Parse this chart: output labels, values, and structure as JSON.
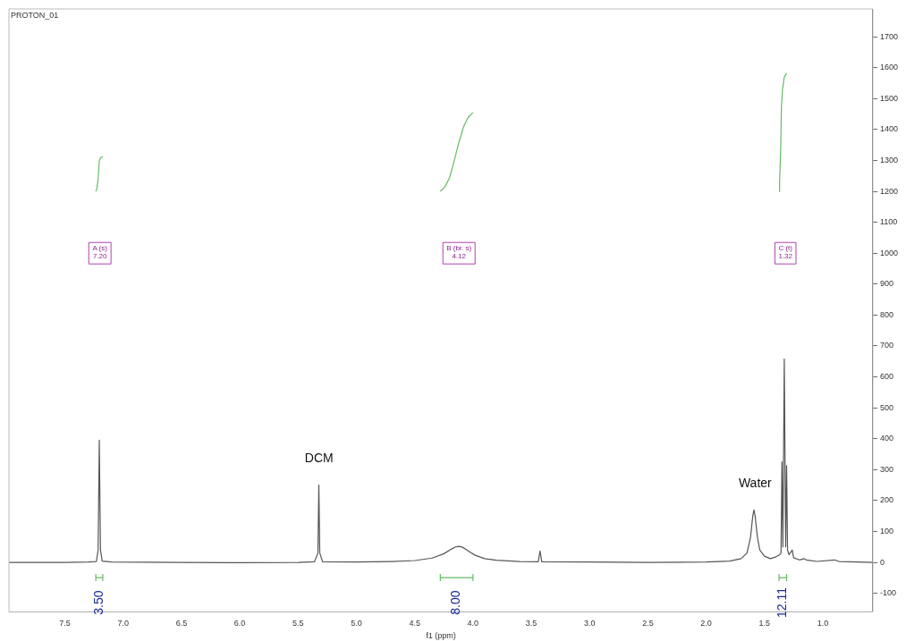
{
  "chart_data": {
    "type": "line",
    "title": "PROTON_01",
    "xlabel": "f1 (ppm)",
    "xlim": [
      7.98,
      0.57
    ],
    "ylim": [
      -160,
      1790
    ],
    "xticks": [
      7.5,
      {
        "value": 7,
        "label": "7.0"
      },
      6.5,
      {
        "value": 6,
        "label": "6.0"
      },
      5.5,
      {
        "value": 5,
        "label": "5.0"
      },
      4.5,
      {
        "value": 4,
        "label": "4.0"
      },
      3.5,
      {
        "value": 3,
        "label": "3.0"
      },
      2.5,
      {
        "value": 2,
        "label": "2.0"
      },
      1.5,
      {
        "value": 1,
        "label": "1.0"
      }
    ],
    "yticks": [
      -100,
      0,
      100,
      200,
      300,
      400,
      500,
      600,
      700,
      800,
      900,
      1000,
      1100,
      1200,
      1300,
      1400,
      1500,
      1600,
      1700
    ],
    "series": [
      {
        "color": "#555555",
        "x": [
          7.98,
          7.5,
          7.3,
          7.23,
          7.215,
          7.205,
          7.195,
          7.18,
          7.1,
          6.5,
          6.0,
          5.5,
          5.36,
          5.33,
          5.322,
          5.314,
          5.29,
          5.0,
          4.7,
          4.5,
          4.35,
          4.25,
          4.18,
          4.15,
          4.12,
          4.09,
          4.06,
          4.02,
          3.98,
          3.9,
          3.8,
          3.6,
          3.44,
          3.425,
          3.41,
          3.0,
          2.5,
          2.0,
          1.8,
          1.7,
          1.65,
          1.62,
          1.6,
          1.59,
          1.58,
          1.56,
          1.54,
          1.5,
          1.45,
          1.4,
          1.37,
          1.358,
          1.35,
          1.342,
          1.33,
          1.318,
          1.31,
          1.302,
          1.29,
          1.27,
          1.262,
          1.25,
          1.2,
          1.16,
          1.14,
          1.05,
          0.9,
          0.86,
          0.7,
          0.57
        ],
        "values": [
          0,
          0,
          1,
          3,
          40,
          395,
          40,
          4,
          1,
          0,
          -1,
          0,
          2,
          30,
          250,
          30,
          2,
          1,
          3,
          6,
          14,
          28,
          44,
          50,
          52,
          49,
          42,
          32,
          23,
          12,
          7,
          3,
          2,
          37,
          2,
          1,
          0,
          1,
          4,
          12,
          30,
          80,
          150,
          170,
          150,
          80,
          40,
          20,
          12,
          18,
          25,
          30,
          325,
          50,
          658,
          50,
          313,
          40,
          25,
          35,
          40,
          15,
          8,
          12,
          8,
          3,
          8,
          3,
          1,
          0
        ]
      },
      {
        "color": "#66bb66",
        "x": [
          7.235,
          7.225,
          7.215,
          7.205,
          7.19,
          7.175
        ],
        "values": [
          1200,
          1210,
          1240,
          1300,
          1310,
          1312
        ]
      },
      {
        "color": "#66bb66",
        "x": [
          4.28,
          4.24,
          4.2,
          4.16,
          4.12,
          4.08,
          4.04,
          4.0
        ],
        "values": [
          1200,
          1215,
          1245,
          1300,
          1360,
          1410,
          1440,
          1455
        ]
      },
      {
        "color": "#66bb66",
        "x": [
          1.375,
          1.37,
          1.36,
          1.355,
          1.345,
          1.33,
          1.31
        ],
        "values": [
          1200,
          1230,
          1350,
          1470,
          1530,
          1570,
          1582
        ]
      }
    ],
    "annotations": [
      {
        "text": "DCM",
        "x": 5.32,
        "y": 250
      },
      {
        "text": "Water",
        "x": 1.58,
        "y": 170
      },
      {
        "text": "A (s)\n7.20",
        "x": 7.2,
        "y": 1000
      },
      {
        "text": "B (br. s)\n4.12",
        "x": 4.12,
        "y": 1000
      },
      {
        "text": "C (t)\n1.32",
        "x": 1.32,
        "y": 1000
      },
      "3.50",
      "8.00",
      "12.11"
    ]
  }
}
